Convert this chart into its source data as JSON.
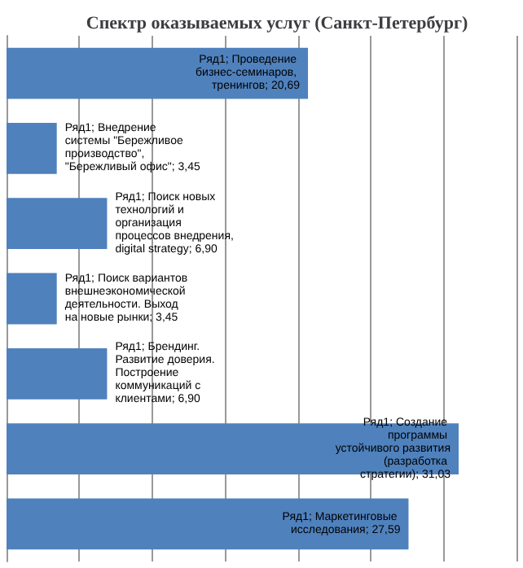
{
  "chart_data": {
    "type": "bar",
    "orientation": "horizontal",
    "title": "Спектр оказываемых услуг (Санкт-Петербург)",
    "categories": [
      null,
      null,
      null,
      null,
      null,
      null,
      null
    ],
    "series": [
      {
        "color": "#4f81bd",
        "values": [
          20.69,
          3.45,
          6.9,
          3.45,
          6.9,
          31.03,
          27.59
        ],
        "value_labels": [
          "Ряд1; Проведение бизнес-семинаров, тренингов; 20,69",
          "Ряд1; Внедрение системы \"Бережливое производство\", \"Бережливый офис\"; 3,45",
          "Ряд1; Поиск новых технологий и организация процессов внедрения, digital strategy; 6,90",
          "Ряд1; Поиск вариантов внешнеэкономической деятельности. Выход на новые рынки; 3,45",
          "Ряд1; Брендинг. Развитие доверия. Построение коммуникаций с клиентами; 6,90",
          "Ряд1; Создание программы устойчивого развития (разработка стратегии); 31,03",
          "Ряд1; Маркетинговые исследования; 27,59"
        ]
      }
    ],
    "tick_labels": false,
    "grid": "x"
  }
}
